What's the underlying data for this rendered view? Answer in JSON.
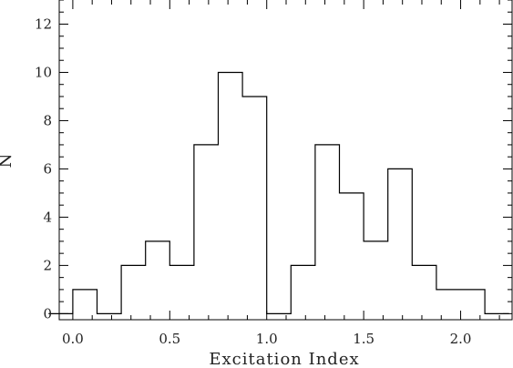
{
  "chart_data": {
    "type": "bar",
    "style": "step-histogram",
    "xlabel": "Excitation Index",
    "ylabel": "N",
    "xlim": [
      -0.07,
      2.27
    ],
    "ylim": [
      -0.25,
      13
    ],
    "bin_width": 0.125,
    "bin_centers": [
      -0.0625,
      0.0625,
      0.1875,
      0.3125,
      0.4375,
      0.5625,
      0.6875,
      0.8125,
      0.9375,
      1.0625,
      1.1875,
      1.3125,
      1.4375,
      1.5625,
      1.6875,
      1.8125,
      1.9375,
      2.0625,
      2.1875
    ],
    "counts": [
      0,
      1,
      0,
      2,
      3,
      2,
      7,
      10,
      9,
      0,
      2,
      7,
      5,
      3,
      6,
      2,
      1,
      1,
      0
    ],
    "x_ticks": [
      0.0,
      0.5,
      1.0,
      1.5,
      2.0
    ],
    "x_tick_labels": [
      "0.0",
      "0.5",
      "1.0",
      "1.5",
      "2.0"
    ],
    "y_ticks": [
      0,
      2,
      4,
      6,
      8,
      10,
      12
    ],
    "y_tick_labels": [
      "0",
      "2",
      "4",
      "6",
      "8",
      "10",
      "12"
    ],
    "grid": false,
    "line_color": "#000000"
  }
}
